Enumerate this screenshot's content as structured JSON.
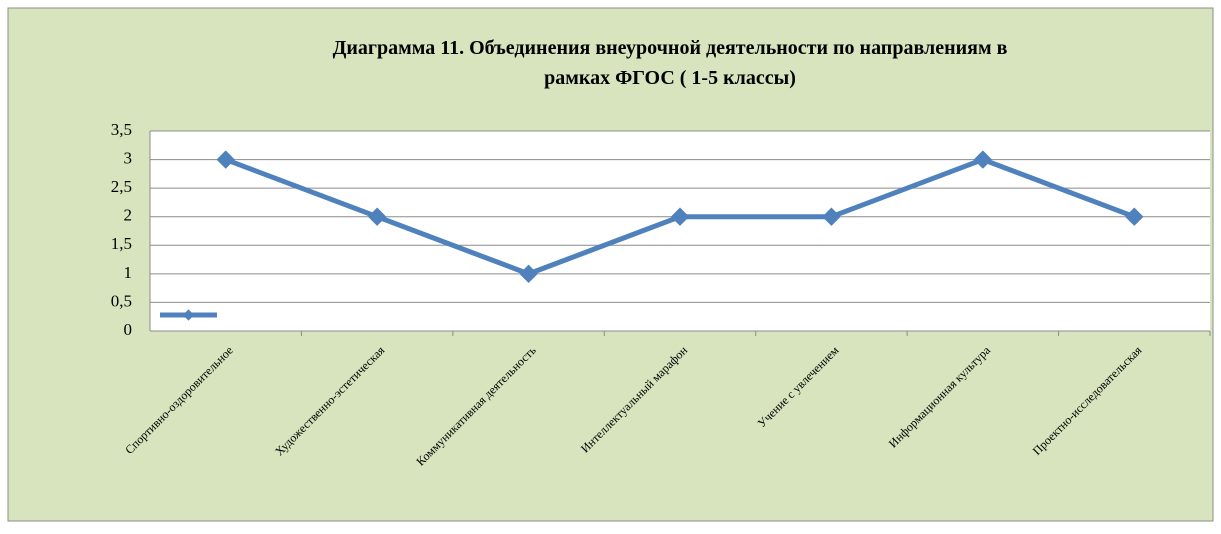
{
  "chart_data": {
    "type": "line",
    "title": [
      "Диаграмма 11. Объединения внеурочной деятельности по направлениям в",
      "рамках ФГОС ( 1-5 классы)"
    ],
    "categories": [
      "Спортивно-оздоровительное",
      "Художественно-эстетическая",
      "Коммуникативная деятельность",
      "Интеллектуальный марафон",
      "Учение с увлечением",
      "Информационная культура",
      "Проектно-исследовательская"
    ],
    "series": [
      {
        "color": "#4f81bd",
        "values": [
          3,
          2,
          1,
          2,
          2,
          3,
          2
        ]
      }
    ],
    "ylim": [
      0,
      3.5
    ],
    "yticks": [
      0,
      {
        "value": 0.5,
        "label": "0,5"
      },
      1,
      {
        "value": 1.5,
        "label": "1,5"
      },
      2,
      {
        "value": 2.5,
        "label": "2,5"
      },
      3,
      {
        "value": 3.5,
        "label": "3,5"
      }
    ],
    "grid": true,
    "legend": "bottom-left"
  }
}
